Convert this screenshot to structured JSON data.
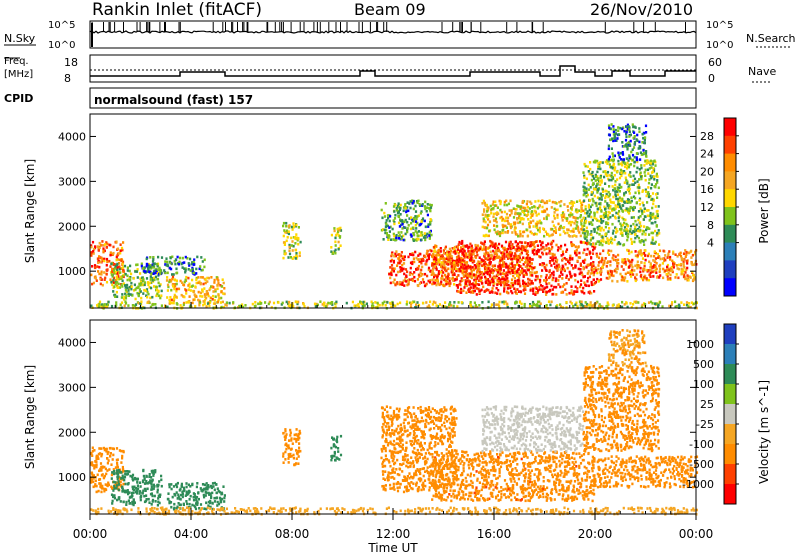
{
  "header": {
    "title": "Rankin Inlet (fitACF)",
    "beam": "Beam 09",
    "date": "26/Nov/2010"
  },
  "strips": {
    "nsky_label": "N.Sky",
    "nsky_ticks": [
      "10^5",
      "10^0"
    ],
    "nsearch_label": "N.Search",
    "nsearch_ticks": [
      "10^5",
      "10^0"
    ],
    "freq_label_1": "Freq.",
    "freq_label_2": "[MHz]",
    "freq_ticks": [
      "18",
      "8"
    ],
    "nave_label": "Nave",
    "nave_ticks": [
      "60",
      "0"
    ],
    "cpid_label": "CPID",
    "cpid_text": "normalsound (fast) 157"
  },
  "chart_data": [
    {
      "type": "heatmap",
      "name": "power",
      "ylabel": "Slant Range [km]",
      "yticks": [
        "4000",
        "3000",
        "2000",
        "1000"
      ],
      "ylim": [
        180,
        4500
      ],
      "xlim": [
        0,
        24
      ],
      "colorbar_label": "Power [dB]",
      "colorbar_ticks": [
        "28",
        "24",
        "20",
        "16",
        "12",
        "8",
        "4"
      ],
      "colorbar_colors": [
        "#ff0000",
        "#ff4000",
        "#ff8c00",
        "#f5a623",
        "#ffd700",
        "#7fc31c",
        "#2e8b57",
        "#2c7fb8",
        "#1f3fbf",
        "#0000ff"
      ],
      "blobs": [
        {
          "t0": 0.0,
          "t1": 1.3,
          "r0": 700,
          "r1": 1700,
          "v": 24
        },
        {
          "t0": 0.8,
          "t1": 2.8,
          "r0": 400,
          "r1": 1200,
          "v": 10
        },
        {
          "t0": 2.0,
          "t1": 4.5,
          "r0": 950,
          "r1": 1350,
          "v": 6
        },
        {
          "t0": 3.0,
          "t1": 5.3,
          "r0": 300,
          "r1": 900,
          "v": 18
        },
        {
          "t0": 7.6,
          "t1": 8.3,
          "r0": 1300,
          "r1": 2100,
          "v": 12
        },
        {
          "t0": 9.5,
          "t1": 9.9,
          "r0": 1400,
          "r1": 2000,
          "v": 12
        },
        {
          "t0": 11.5,
          "t1": 13.5,
          "r0": 1700,
          "r1": 2600,
          "v": 8
        },
        {
          "t0": 11.8,
          "t1": 14.5,
          "r0": 700,
          "r1": 1500,
          "v": 26
        },
        {
          "t0": 13.5,
          "t1": 17.5,
          "r0": 700,
          "r1": 1600,
          "v": 22
        },
        {
          "t0": 14.5,
          "t1": 20.0,
          "r0": 500,
          "r1": 1700,
          "v": 28
        },
        {
          "t0": 15.5,
          "t1": 19.5,
          "r0": 1800,
          "r1": 2600,
          "v": 16
        },
        {
          "t0": 19.5,
          "t1": 22.5,
          "r0": 1600,
          "r1": 3500,
          "v": 10
        },
        {
          "t0": 20.0,
          "t1": 24.0,
          "r0": 800,
          "r1": 1500,
          "v": 22
        },
        {
          "t0": 20.5,
          "t1": 22.0,
          "r0": 3500,
          "r1": 4300,
          "v": 6
        },
        {
          "t0": 0.0,
          "t1": 24.0,
          "r0": 200,
          "r1": 350,
          "v": 12
        }
      ]
    },
    {
      "type": "heatmap",
      "name": "velocity",
      "ylabel": "Slant Range [km]",
      "yticks": [
        "4000",
        "3000",
        "2000",
        "1000"
      ],
      "ylim": [
        180,
        4500
      ],
      "xlim": [
        0,
        24
      ],
      "xticks": [
        "00:00",
        "04:00",
        "08:00",
        "12:00",
        "16:00",
        "20:00",
        "00:00"
      ],
      "xlabel": "Time UT",
      "colorbar_label": "Velocity [m s^-1]",
      "colorbar_ticks": [
        "1000",
        "500",
        "100",
        "25",
        "-25",
        "-100",
        "-500",
        "-1000"
      ],
      "colorbar_colors": [
        "#1f3fbf",
        "#2c7fb8",
        "#2e8b57",
        "#7fc31c",
        "#c8c8be",
        "#f5a623",
        "#ff8c00",
        "#ff4000",
        "#ff0000"
      ],
      "blobs": [
        {
          "t0": 0.0,
          "t1": 1.3,
          "r0": 700,
          "r1": 1700,
          "v": -300
        },
        {
          "t0": 0.8,
          "t1": 2.8,
          "r0": 400,
          "r1": 1200,
          "v": 200
        },
        {
          "t0": 3.0,
          "t1": 5.3,
          "r0": 300,
          "r1": 900,
          "v": 300
        },
        {
          "t0": 7.6,
          "t1": 8.3,
          "r0": 1300,
          "r1": 2100,
          "v": -200
        },
        {
          "t0": 9.5,
          "t1": 9.9,
          "r0": 1400,
          "r1": 2000,
          "v": 300
        },
        {
          "t0": 11.5,
          "t1": 14.5,
          "r0": 700,
          "r1": 2600,
          "v": -300
        },
        {
          "t0": 13.5,
          "t1": 20.0,
          "r0": 500,
          "r1": 1600,
          "v": -400
        },
        {
          "t0": 15.5,
          "t1": 19.5,
          "r0": 1600,
          "r1": 2600,
          "v": 0
        },
        {
          "t0": 19.5,
          "t1": 22.5,
          "r0": 1600,
          "r1": 3500,
          "v": -150
        },
        {
          "t0": 20.0,
          "t1": 24.0,
          "r0": 800,
          "r1": 1500,
          "v": -200
        },
        {
          "t0": 20.5,
          "t1": 22.0,
          "r0": 3500,
          "r1": 4300,
          "v": -100
        },
        {
          "t0": 0.0,
          "t1": 24.0,
          "r0": 200,
          "r1": 350,
          "v": -50
        }
      ]
    }
  ]
}
